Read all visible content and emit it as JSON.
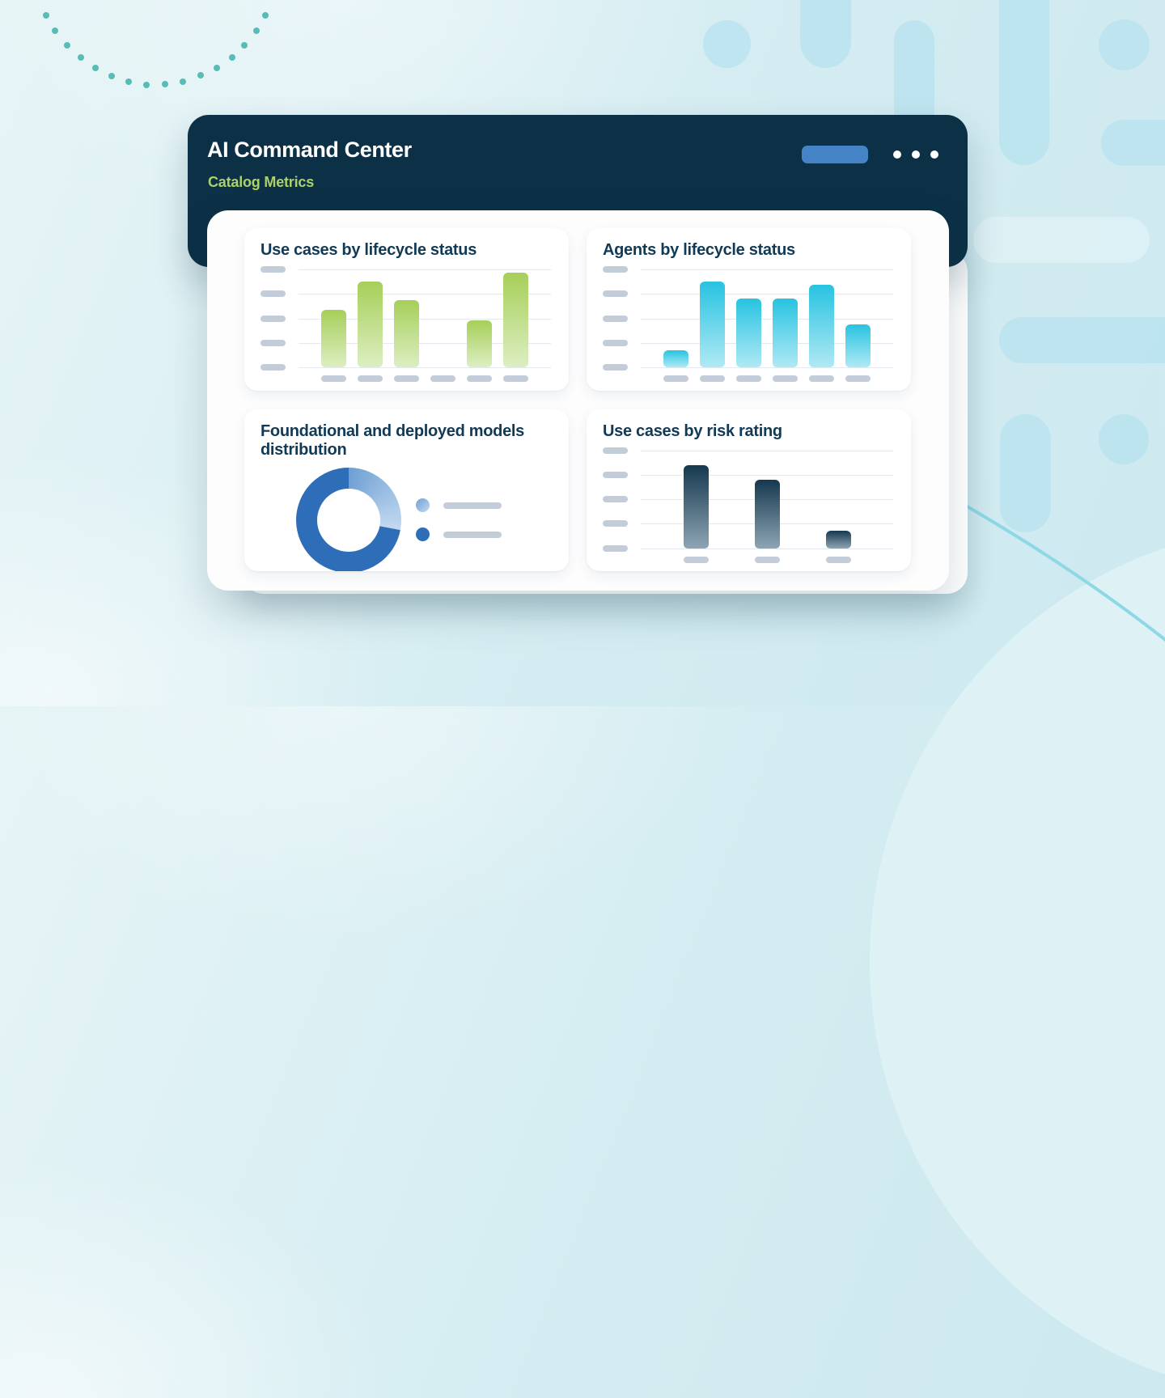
{
  "header": {
    "title": "AI Command Center",
    "subtitle": "Catalog Metrics",
    "action_button_label": "",
    "menu_dot_count": 3
  },
  "colors": {
    "navy_header": "#0c3147",
    "subtitle_lime": "#aed169",
    "action_button_blue": "#4583c7",
    "card_title": "#103a56",
    "axis_tick_gray": "#c3cdd9",
    "gridline_gray": "#e3e9f0",
    "background_dots_teal": "#57bcb6",
    "background_pattern_blue": "#b5e2ef",
    "arc_stroke": "#8ed8e6"
  },
  "palettes": {
    "green": {
      "top": "#a6cf59",
      "bottom": "#ddeec2"
    },
    "cyan": {
      "top": "#27c3e1",
      "bottom": "#b0e9f4"
    },
    "navy": {
      "top": "#16384f",
      "bottom": "#8da5b3"
    },
    "donut": {
      "solid": "#2e6db8",
      "gradient_start": "#6fa0d3",
      "gradient_end": "#c2d9f0"
    }
  },
  "cards": [
    {
      "title": "Use cases by lifecycle status",
      "chart": {
        "type": "bar",
        "palette": "green",
        "values": [
          59,
          88,
          69,
          0,
          48,
          97
        ],
        "y_ticks": 5,
        "x_ticks": 6
      }
    },
    {
      "title": "Agents by lifecycle status",
      "chart": {
        "type": "bar",
        "palette": "cyan",
        "values": [
          17,
          88,
          70,
          70,
          84,
          44
        ],
        "y_ticks": 5,
        "x_ticks": 6
      }
    },
    {
      "title": "Foundational and deployed models distribution",
      "chart": {
        "type": "donut",
        "slices": [
          {
            "name": "slice-gradient-light-blue",
            "value": 28
          },
          {
            "name": "slice-solid-blue",
            "value": 72
          }
        ]
      }
    },
    {
      "title": "Use cases by risk rating",
      "chart": {
        "type": "bar",
        "palette": "navy",
        "values": [
          85,
          70,
          18
        ],
        "y_ticks": 5,
        "x_ticks": 3
      }
    }
  ],
  "chart_data": [
    {
      "type": "bar",
      "title": "Use cases by lifecycle status",
      "categories": [
        "",
        "",
        "",
        "",
        "",
        ""
      ],
      "values": [
        59,
        88,
        69,
        0,
        48,
        97
      ],
      "xlabel": "",
      "ylabel": "",
      "ylim": [
        0,
        100
      ],
      "grid": true,
      "note": "Axis tick labels are blank placeholder pills; values are relative bar heights (% of plot height)."
    },
    {
      "type": "bar",
      "title": "Agents by lifecycle status",
      "categories": [
        "",
        "",
        "",
        "",
        "",
        ""
      ],
      "values": [
        17,
        88,
        70,
        70,
        84,
        44
      ],
      "xlabel": "",
      "ylabel": "",
      "ylim": [
        0,
        100
      ],
      "grid": true,
      "note": "Axis tick labels are blank placeholder pills; values are relative bar heights (% of plot height)."
    },
    {
      "type": "pie",
      "title": "Foundational and deployed models distribution",
      "categories": [
        "light-blue slice",
        "solid-blue slice"
      ],
      "values": [
        28,
        72
      ],
      "legend_position": "right",
      "note": "Donut chart; legend labels are blank placeholder lines."
    },
    {
      "type": "bar",
      "title": "Use cases by risk rating",
      "categories": [
        "",
        "",
        ""
      ],
      "values": [
        85,
        70,
        18
      ],
      "xlabel": "",
      "ylabel": "",
      "ylim": [
        0,
        100
      ],
      "grid": true,
      "note": "Axis tick labels are blank placeholder pills; values are relative bar heights (% of plot height)."
    }
  ]
}
